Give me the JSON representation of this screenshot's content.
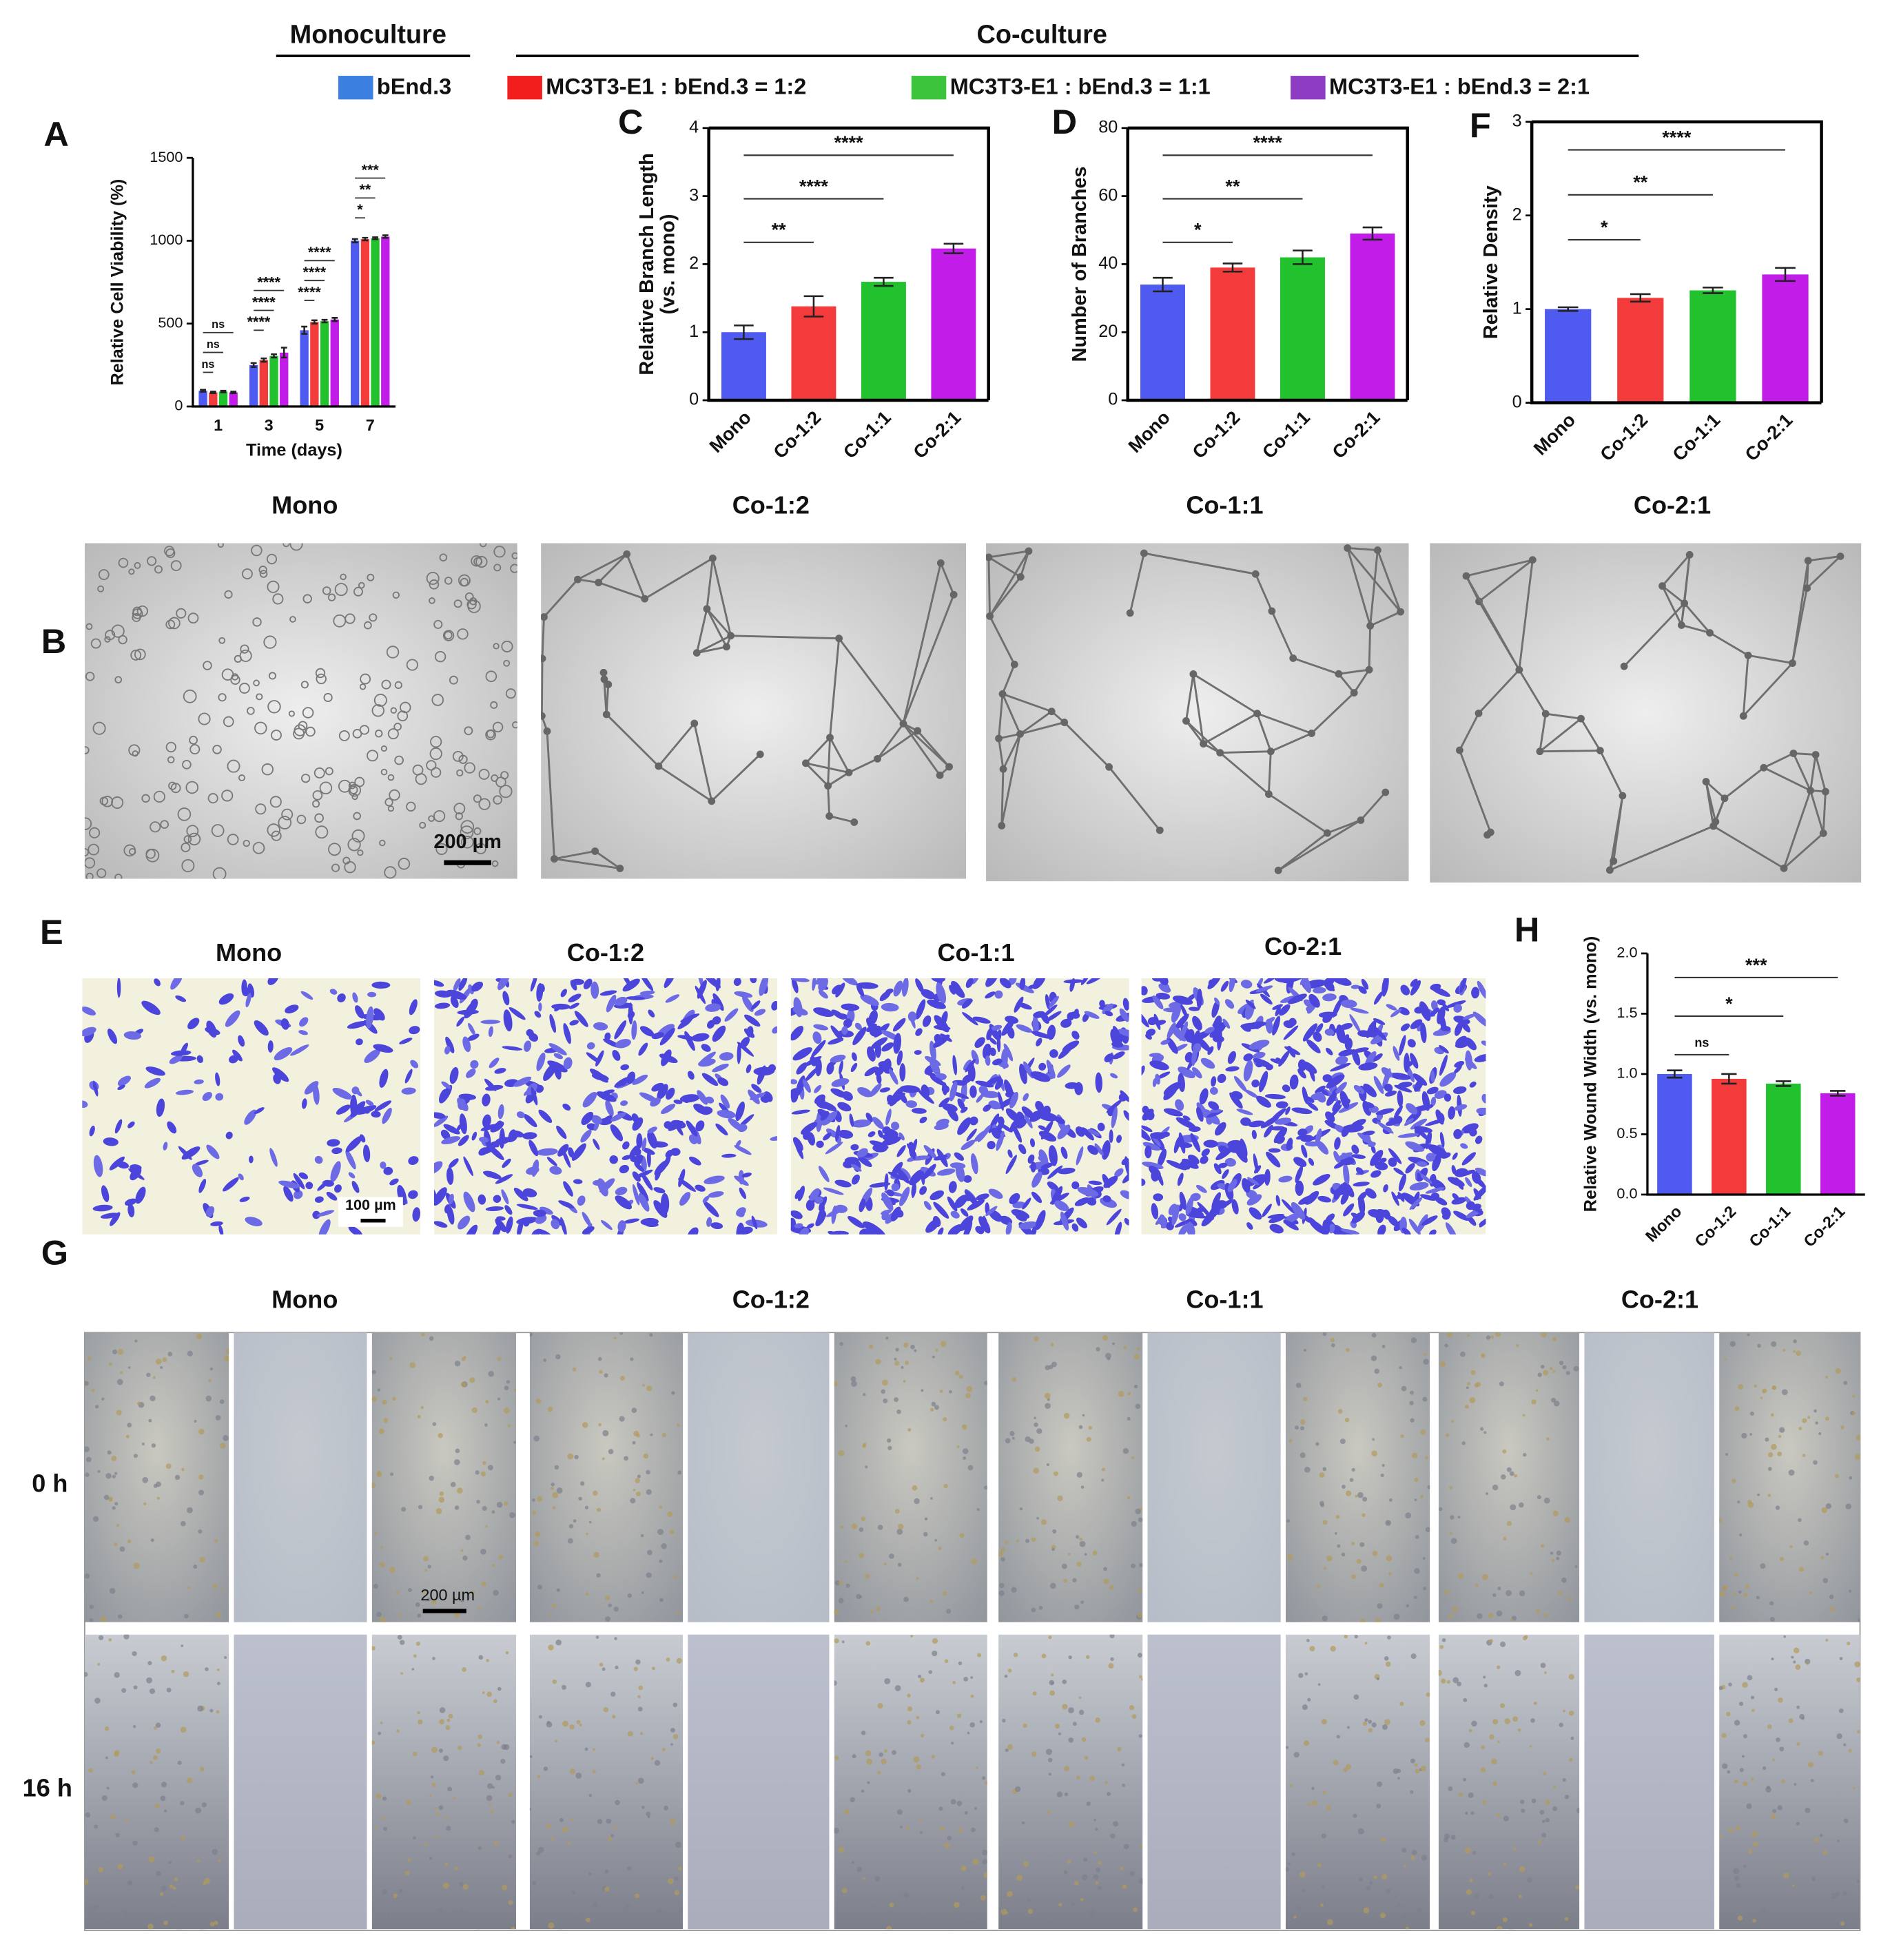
{
  "header": {
    "monoculture": "Monoculture",
    "coculture": "Co-culture"
  },
  "chart_data": [
    {
      "type": "bar",
      "panel": "A",
      "xlabel": "Time (days)",
      "ylabel": [
        "Relative Cell Viability (%)"
      ],
      "categories": [
        "1",
        "3",
        "5",
        "7"
      ],
      "series": [
        {
          "name": "bEnd.3",
          "color": "#3b7fe0",
          "bar_color": "#4f5bf0",
          "values": [
            95,
            250,
            460,
            1000
          ],
          "errors": [
            6,
            12,
            22,
            10
          ]
        },
        {
          "name": "MC3T3-E1 : bEnd.3  = 1:2",
          "color": "#f21e1e",
          "bar_color": "#f43b3b",
          "values": [
            85,
            280,
            510,
            1010
          ],
          "errors": [
            5,
            10,
            10,
            8
          ],
          "significance": [
            "ns",
            "****",
            "****",
            "*"
          ]
        },
        {
          "name": "MC3T3-E1 : bEnd.3 = 1:1",
          "color": "#3cc43c",
          "bar_color": "#22c12e",
          "values": [
            90,
            305,
            515,
            1015
          ],
          "errors": [
            5,
            10,
            8,
            6
          ],
          "significance": [
            "ns",
            "****",
            "****",
            "**"
          ]
        },
        {
          "name": "MC3T3-E1 : bEnd.3 = 2:1",
          "color": "#8e3cc4",
          "bar_color": "#c21ce8",
          "values": [
            85,
            325,
            525,
            1025
          ],
          "errors": [
            5,
            30,
            10,
            8
          ],
          "significance": [
            "ns",
            "****",
            "****",
            "***"
          ]
        }
      ],
      "ylim": [
        0,
        1500
      ],
      "yticks": [
        0,
        500,
        1000,
        1500
      ],
      "frame": false
    },
    {
      "type": "bar",
      "panel": "C",
      "ylabel": [
        "Relative Branch Length",
        "(vs. mono)"
      ],
      "categories": [
        "Mono",
        "Co-1:2",
        "Co-1:1",
        "Co-2:1"
      ],
      "colors": [
        "#4f5bf0",
        "#f43b3b",
        "#22c12e",
        "#c21ce8"
      ],
      "values": [
        1.0,
        1.38,
        1.74,
        2.23
      ],
      "errors": [
        0.1,
        0.15,
        0.06,
        0.07
      ],
      "significance": [
        null,
        "**",
        "****",
        "****"
      ],
      "ylim": [
        0,
        4
      ],
      "yticks": [
        0,
        1,
        2,
        3,
        4
      ],
      "frame": true
    },
    {
      "type": "bar",
      "panel": "D",
      "ylabel": [
        "Number of Branches"
      ],
      "categories": [
        "Mono",
        "Co-1:2",
        "Co-1:1",
        "Co-2:1"
      ],
      "colors": [
        "#4f5bf0",
        "#f43b3b",
        "#22c12e",
        "#c21ce8"
      ],
      "values": [
        34,
        39,
        42,
        49
      ],
      "errors": [
        2,
        1.2,
        2,
        1.8
      ],
      "significance": [
        null,
        "*",
        "**",
        "****"
      ],
      "ylim": [
        0,
        80
      ],
      "yticks": [
        0,
        20,
        40,
        60,
        80
      ],
      "frame": true
    },
    {
      "type": "bar",
      "panel": "F",
      "ylabel": [
        "Relative Density"
      ],
      "categories": [
        "Mono",
        "Co-1:2",
        "Co-1:1",
        "Co-2:1"
      ],
      "colors": [
        "#4f5bf0",
        "#f43b3b",
        "#22c12e",
        "#c21ce8"
      ],
      "values": [
        1.0,
        1.12,
        1.2,
        1.37
      ],
      "errors": [
        0.02,
        0.04,
        0.03,
        0.07
      ],
      "significance": [
        null,
        "*",
        "**",
        "****"
      ],
      "ylim": [
        0,
        3
      ],
      "yticks": [
        0,
        1,
        2,
        3
      ],
      "frame": true
    },
    {
      "type": "bar",
      "panel": "H",
      "ylabel": [
        "Relative Wound Width (vs. mono)"
      ],
      "categories": [
        "Mono",
        "Co-1:2",
        "Co-1:1",
        "Co-2:1"
      ],
      "colors": [
        "#4f5bf0",
        "#f43b3b",
        "#22c12e",
        "#c21ce8"
      ],
      "values": [
        1.0,
        0.96,
        0.92,
        0.84
      ],
      "errors": [
        0.03,
        0.04,
        0.02,
        0.02
      ],
      "significance": [
        null,
        "ns",
        "*",
        "***"
      ],
      "ylim": [
        0,
        2
      ],
      "yticks": [
        {
          "value": 0,
          "label": "0.0"
        },
        {
          "value": 0.5,
          "label": "0.5"
        },
        {
          "value": 1,
          "label": "1.0"
        },
        {
          "value": 1.5,
          "label": "1.5"
        },
        {
          "value": 2,
          "label": "2.0"
        }
      ],
      "frame": false
    }
  ],
  "panels": {
    "B": {
      "label": "B",
      "titles": [
        "Mono",
        "Co-1:2",
        "Co-1:1",
        "Co-2:1"
      ],
      "scale_bar": "200 µm"
    },
    "E": {
      "label": "E",
      "titles": [
        "Mono",
        "Co-1:2",
        "Co-1:1",
        "Co-2:1"
      ],
      "scale_bar": "100 µm"
    },
    "G": {
      "label": "G",
      "titles": [
        "Mono",
        "Co-1:2",
        "Co-1:1",
        "Co-2:1"
      ],
      "rows": [
        "0 h",
        "16 h"
      ],
      "scale_bar": "200 µm"
    }
  }
}
